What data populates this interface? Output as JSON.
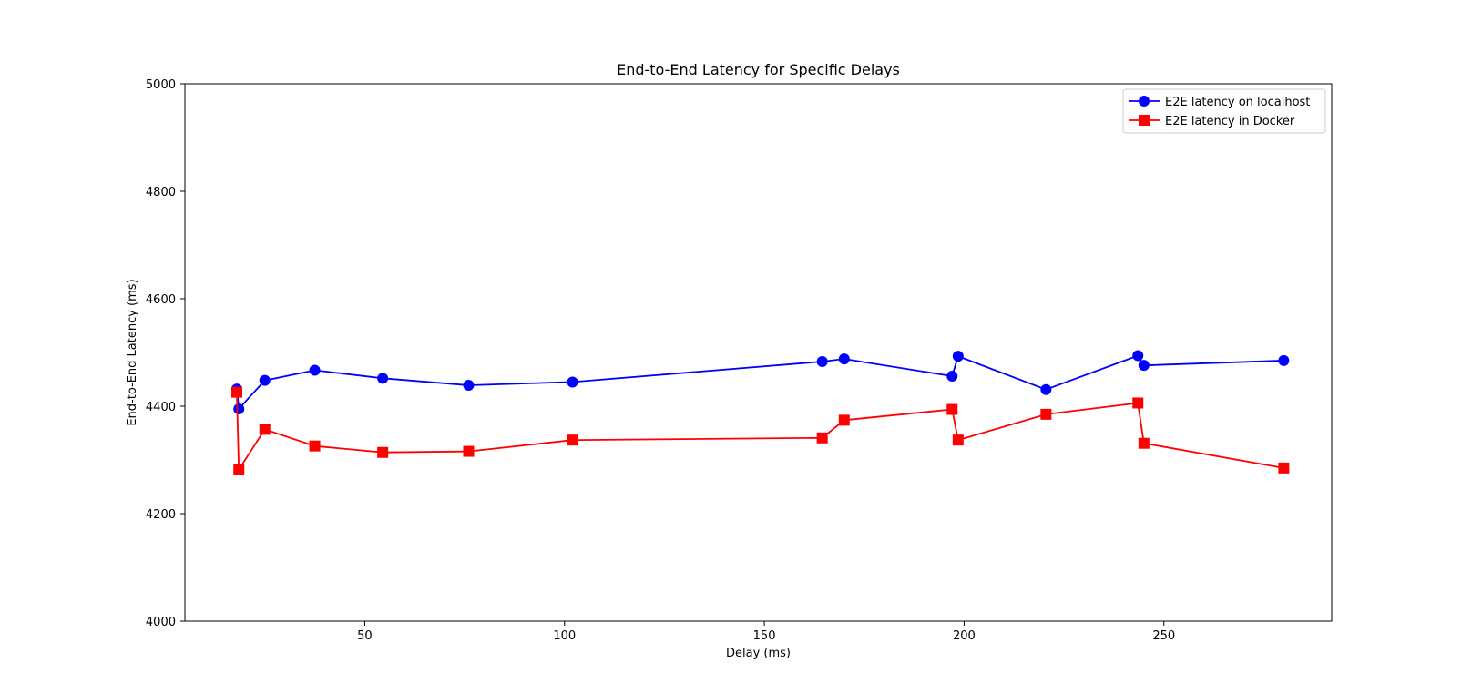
{
  "chart_data": {
    "type": "line",
    "title": "End-to-End Latency for Specific Delays",
    "xlabel": "Delay (ms)",
    "ylabel": "End-to-End Latency (ms)",
    "xlim": [
      5,
      292
    ],
    "ylim": [
      4000,
      5000
    ],
    "xticks": [
      50,
      100,
      150,
      200,
      250
    ],
    "yticks": [
      4000,
      4200,
      4400,
      4600,
      4800,
      5000
    ],
    "grid": false,
    "legend_position": "top-right",
    "series": [
      {
        "name": "E2E latency on localhost",
        "color": "#0000ff",
        "marker": "circle",
        "points": [
          [
            18,
            4432
          ],
          [
            18.5,
            4395
          ],
          [
            25,
            4448
          ],
          [
            37.5,
            4467
          ],
          [
            54.5,
            4452
          ],
          [
            76,
            4439
          ],
          [
            102,
            4445
          ],
          [
            164.5,
            4483
          ],
          [
            170,
            4488
          ],
          [
            197,
            4456
          ],
          [
            198.5,
            4493
          ],
          [
            220.5,
            4431
          ],
          [
            243.5,
            4494
          ],
          [
            245,
            4476
          ],
          [
            280,
            4485
          ]
        ]
      },
      {
        "name": "E2E latency in Docker",
        "color": "#ff0000",
        "marker": "square",
        "points": [
          [
            18,
            4426
          ],
          [
            18.5,
            4282
          ],
          [
            25,
            4357
          ],
          [
            37.5,
            4326
          ],
          [
            54.5,
            4314
          ],
          [
            76,
            4316
          ],
          [
            102,
            4337
          ],
          [
            164.5,
            4341
          ],
          [
            170,
            4374
          ],
          [
            197,
            4394
          ],
          [
            198.5,
            4337
          ],
          [
            220.5,
            4385
          ],
          [
            243.5,
            4406
          ],
          [
            245,
            4331
          ],
          [
            280,
            4285
          ]
        ]
      }
    ]
  }
}
